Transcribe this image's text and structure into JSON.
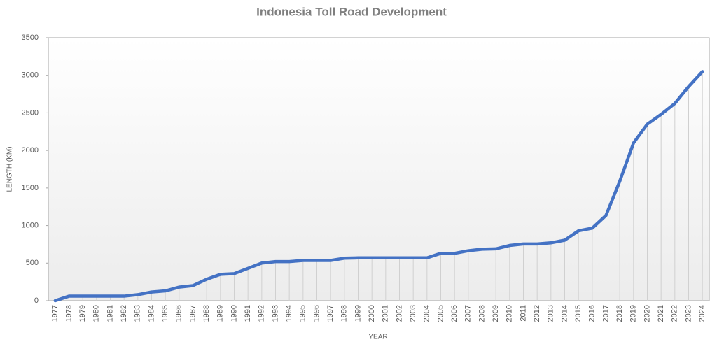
{
  "chart_data": {
    "type": "line",
    "title": "Indonesia Toll Road Development",
    "x_label": "YEAR",
    "y_label": "LENGTH (KM)",
    "categories": [
      "1977",
      "1978",
      "1979",
      "1980",
      "1981",
      "1982",
      "1983",
      "1984",
      "1985",
      "1986",
      "1987",
      "1988",
      "1989",
      "1990",
      "1991",
      "1992",
      "1993",
      "1994",
      "1995",
      "1996",
      "1997",
      "1998",
      "1999",
      "2000",
      "2001",
      "2002",
      "2003",
      "2004",
      "2005",
      "2006",
      "2007",
      "2008",
      "2009",
      "2010",
      "2011",
      "2012",
      "2013",
      "2014",
      "2015",
      "2016",
      "2017",
      "2018",
      "2019",
      "2020",
      "2021",
      "2022",
      "2023",
      "2024"
    ],
    "values": [
      0,
      60,
      60,
      60,
      60,
      60,
      80,
      115,
      130,
      180,
      200,
      285,
      350,
      360,
      430,
      500,
      520,
      520,
      535,
      535,
      535,
      565,
      570,
      570,
      570,
      570,
      570,
      570,
      630,
      630,
      665,
      685,
      690,
      735,
      755,
      755,
      770,
      805,
      930,
      965,
      1135,
      1590,
      2100,
      2350,
      2480,
      2625,
      2850,
      3050
    ],
    "color": "#4472c4",
    "ylim": [
      0,
      3500
    ],
    "yticks": [
      0,
      500,
      1000,
      1500,
      2000,
      2500,
      3000,
      3500
    ],
    "drop_lines": true
  }
}
